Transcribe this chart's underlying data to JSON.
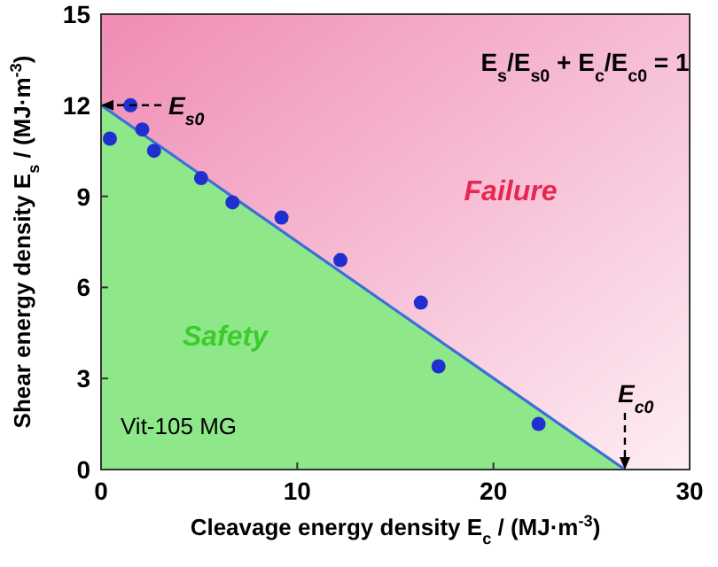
{
  "chart_data": {
    "type": "scatter",
    "xlabel": "Cleavage energy density E$_{c}$ / (MJ·m$^{-3}$)",
    "ylabel": "Shear energy density E$_{s}$ / (MJ·m$^{-3}$)",
    "x": [
      0.45,
      1.5,
      2.1,
      2.7,
      5.1,
      6.7,
      9.2,
      12.2,
      16.3,
      17.2,
      22.3
    ],
    "series": [
      {
        "type": "area",
        "color": "#8ee88a",
        "marker": "none",
        "x": [
          0,
          26.7
        ],
        "values": [
          12,
          0
        ]
      },
      {
        "color": "#1f2fd0",
        "values": [
          10.9,
          12.0,
          11.2,
          10.5,
          9.6,
          8.8,
          8.3,
          6.9,
          5.5,
          3.4,
          1.5
        ]
      }
    ],
    "xlim": [
      0,
      30
    ],
    "xticks": [
      0,
      10,
      20,
      30
    ],
    "ylim": [
      0,
      15
    ],
    "yticks": [
      0,
      3,
      6,
      9,
      12,
      15
    ],
    "marker": "circle",
    "grid": false,
    "annotations": [
      "E$_{s}$/E$_{s0}$ + E$_{c}$/E$_{c0}$ = 1",
      "Failure",
      "Safety",
      "Vit-105 MG",
      {
        "text": "E$_{s0}$",
        "x": 0,
        "y": 12
      },
      {
        "text": "E$_{c0}$",
        "x": 26.7,
        "y": 0
      }
    ]
  }
}
